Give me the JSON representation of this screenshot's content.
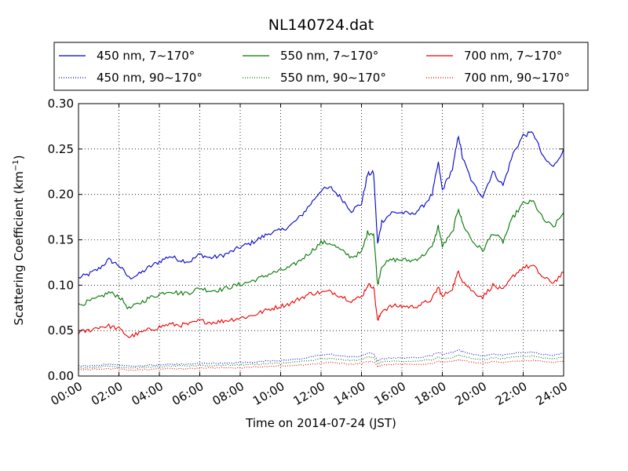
{
  "chart_data": {
    "type": "line",
    "title": "NL140724.dat",
    "xlabel": "Time on 2014-07-24 (JST)",
    "ylabel": "Scattering Coefficient (km",
    "ylabel_sup": "−1",
    "ylabel_close": ")",
    "xlim": [
      0,
      24
    ],
    "ylim": [
      0,
      0.3
    ],
    "grid": true,
    "legend_placement": "top",
    "x_ticks": [
      0,
      2,
      4,
      6,
      8,
      10,
      12,
      14,
      16,
      18,
      20,
      22,
      24
    ],
    "x_tick_labels": [
      "00:00",
      "02:00",
      "04:00",
      "06:00",
      "08:00",
      "10:00",
      "12:00",
      "14:00",
      "16:00",
      "18:00",
      "20:00",
      "22:00",
      "24:00"
    ],
    "y_ticks": [
      0,
      0.05,
      0.1,
      0.15,
      0.2,
      0.25,
      0.3
    ],
    "y_tick_labels": [
      "0.00",
      "0.05",
      "0.10",
      "0.15",
      "0.20",
      "0.25",
      "0.30"
    ],
    "x": [
      0,
      0.5,
      1,
      1.5,
      2,
      2.5,
      3,
      3.5,
      4,
      4.5,
      5,
      5.5,
      6,
      6.5,
      7,
      7.5,
      8,
      8.5,
      9,
      9.5,
      10,
      10.5,
      11,
      11.5,
      12,
      12.5,
      13,
      13.5,
      14,
      14.3,
      14.6,
      14.8,
      15,
      15.5,
      16,
      16.5,
      17,
      17.5,
      17.8,
      18,
      18.5,
      18.8,
      19,
      19.5,
      20,
      20.5,
      21,
      21.5,
      22,
      22.5,
      23,
      23.5,
      24
    ],
    "series": [
      {
        "name": "450 nm, 7∼170°",
        "color": "#0000cc",
        "style": "solid",
        "values": [
          0.108,
          0.112,
          0.118,
          0.128,
          0.122,
          0.108,
          0.112,
          0.12,
          0.126,
          0.132,
          0.128,
          0.126,
          0.134,
          0.13,
          0.132,
          0.136,
          0.142,
          0.146,
          0.152,
          0.158,
          0.16,
          0.166,
          0.176,
          0.19,
          0.205,
          0.207,
          0.196,
          0.182,
          0.19,
          0.222,
          0.224,
          0.145,
          0.17,
          0.18,
          0.18,
          0.178,
          0.186,
          0.2,
          0.235,
          0.205,
          0.228,
          0.265,
          0.24,
          0.212,
          0.198,
          0.225,
          0.21,
          0.245,
          0.265,
          0.268,
          0.24,
          0.23,
          0.25
        ]
      },
      {
        "name": "550 nm, 7∼170°",
        "color": "#007700",
        "style": "solid",
        "values": [
          0.078,
          0.082,
          0.086,
          0.092,
          0.088,
          0.074,
          0.08,
          0.086,
          0.09,
          0.094,
          0.091,
          0.092,
          0.097,
          0.094,
          0.095,
          0.098,
          0.101,
          0.104,
          0.108,
          0.113,
          0.116,
          0.12,
          0.128,
          0.137,
          0.147,
          0.146,
          0.138,
          0.131,
          0.136,
          0.158,
          0.157,
          0.1,
          0.122,
          0.128,
          0.128,
          0.127,
          0.132,
          0.142,
          0.165,
          0.143,
          0.158,
          0.185,
          0.168,
          0.148,
          0.138,
          0.158,
          0.148,
          0.175,
          0.19,
          0.192,
          0.172,
          0.164,
          0.18
        ]
      },
      {
        "name": "700 nm, 7∼170°",
        "color": "#ee0000",
        "style": "solid",
        "values": [
          0.048,
          0.05,
          0.054,
          0.055,
          0.052,
          0.043,
          0.047,
          0.051,
          0.054,
          0.057,
          0.056,
          0.057,
          0.061,
          0.059,
          0.06,
          0.062,
          0.064,
          0.066,
          0.07,
          0.074,
          0.077,
          0.08,
          0.086,
          0.091,
          0.092,
          0.093,
          0.088,
          0.083,
          0.087,
          0.1,
          0.099,
          0.06,
          0.072,
          0.077,
          0.077,
          0.076,
          0.079,
          0.085,
          0.098,
          0.087,
          0.097,
          0.115,
          0.105,
          0.093,
          0.087,
          0.1,
          0.094,
          0.11,
          0.12,
          0.121,
          0.108,
          0.103,
          0.114
        ]
      },
      {
        "name": "450 nm, 90∼170°",
        "color": "#0000cc",
        "style": "dotted",
        "values": [
          0.011,
          0.011,
          0.012,
          0.013,
          0.012,
          0.011,
          0.011,
          0.012,
          0.012,
          0.013,
          0.013,
          0.013,
          0.014,
          0.014,
          0.014,
          0.014,
          0.015,
          0.015,
          0.016,
          0.017,
          0.017,
          0.018,
          0.019,
          0.021,
          0.023,
          0.024,
          0.022,
          0.021,
          0.022,
          0.025,
          0.025,
          0.016,
          0.019,
          0.02,
          0.02,
          0.02,
          0.021,
          0.023,
          0.026,
          0.024,
          0.026,
          0.029,
          0.027,
          0.024,
          0.022,
          0.024,
          0.023,
          0.025,
          0.026,
          0.026,
          0.024,
          0.023,
          0.025
        ]
      },
      {
        "name": "550 nm, 90∼170°",
        "color": "#007700",
        "style": "dotted",
        "values": [
          0.009,
          0.009,
          0.01,
          0.011,
          0.01,
          0.009,
          0.009,
          0.01,
          0.01,
          0.011,
          0.011,
          0.011,
          0.012,
          0.011,
          0.012,
          0.012,
          0.012,
          0.013,
          0.013,
          0.014,
          0.014,
          0.015,
          0.016,
          0.017,
          0.019,
          0.019,
          0.018,
          0.017,
          0.018,
          0.021,
          0.021,
          0.013,
          0.016,
          0.016,
          0.016,
          0.016,
          0.017,
          0.018,
          0.021,
          0.019,
          0.02,
          0.023,
          0.022,
          0.019,
          0.018,
          0.02,
          0.019,
          0.021,
          0.022,
          0.022,
          0.02,
          0.019,
          0.021
        ]
      },
      {
        "name": "700 nm, 90∼170°",
        "color": "#ee0000",
        "style": "dotted",
        "values": [
          0.007,
          0.007,
          0.008,
          0.008,
          0.008,
          0.006,
          0.007,
          0.007,
          0.008,
          0.008,
          0.008,
          0.008,
          0.009,
          0.009,
          0.009,
          0.009,
          0.009,
          0.01,
          0.01,
          0.011,
          0.011,
          0.011,
          0.012,
          0.013,
          0.014,
          0.015,
          0.014,
          0.013,
          0.014,
          0.016,
          0.016,
          0.01,
          0.012,
          0.013,
          0.013,
          0.013,
          0.013,
          0.014,
          0.016,
          0.015,
          0.016,
          0.018,
          0.017,
          0.015,
          0.014,
          0.016,
          0.015,
          0.016,
          0.017,
          0.017,
          0.016,
          0.015,
          0.016
        ]
      }
    ],
    "legend_order": [
      0,
      1,
      2,
      3,
      4,
      5
    ]
  }
}
